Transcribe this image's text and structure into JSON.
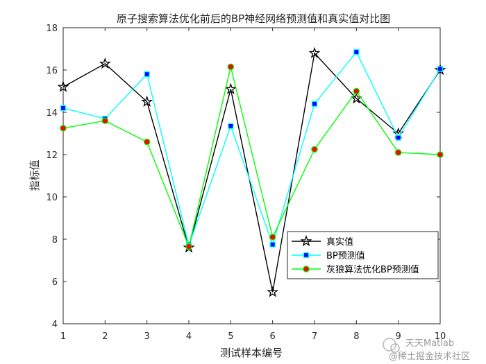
{
  "chart_data": {
    "type": "line",
    "title": "原子搜索算法优化前后的BP神经网络预测值和真实值对比图",
    "xlabel": "测试样本编号",
    "ylabel": "指标值",
    "xlim": [
      1,
      10
    ],
    "ylim": [
      4,
      18
    ],
    "x": [
      1,
      2,
      3,
      4,
      5,
      6,
      7,
      8,
      9,
      10
    ],
    "xticks": [
      "1",
      "2",
      "3",
      "4",
      "5",
      "6",
      "7",
      "8",
      "9",
      "10"
    ],
    "yticks": [
      "4",
      "6",
      "8",
      "10",
      "12",
      "14",
      "16",
      "18"
    ],
    "grid": false,
    "legend_position": "lower-right",
    "series": [
      {
        "name": "真实值",
        "marker": "star",
        "color": "#000000",
        "values": [
          15.2,
          16.3,
          14.5,
          7.6,
          15.1,
          5.5,
          16.8,
          14.65,
          13.0,
          16.0
        ]
      },
      {
        "name": "BP预测值",
        "marker": "square",
        "color": "#00ffff",
        "marker_color": "#0000ff",
        "values": [
          14.2,
          13.7,
          15.8,
          7.7,
          13.35,
          7.75,
          14.4,
          16.85,
          12.8,
          16.05
        ]
      },
      {
        "name": "灰狼算法优化BP预测值",
        "marker": "circle",
        "color": "#00ff00",
        "marker_color": "#ff0000",
        "values": [
          13.25,
          13.6,
          12.6,
          7.65,
          16.15,
          8.1,
          12.25,
          15.0,
          12.1,
          12.0
        ]
      }
    ]
  },
  "watermark": {
    "line1": "天天Matlab",
    "line2": "@稀土掘金技术社区"
  }
}
